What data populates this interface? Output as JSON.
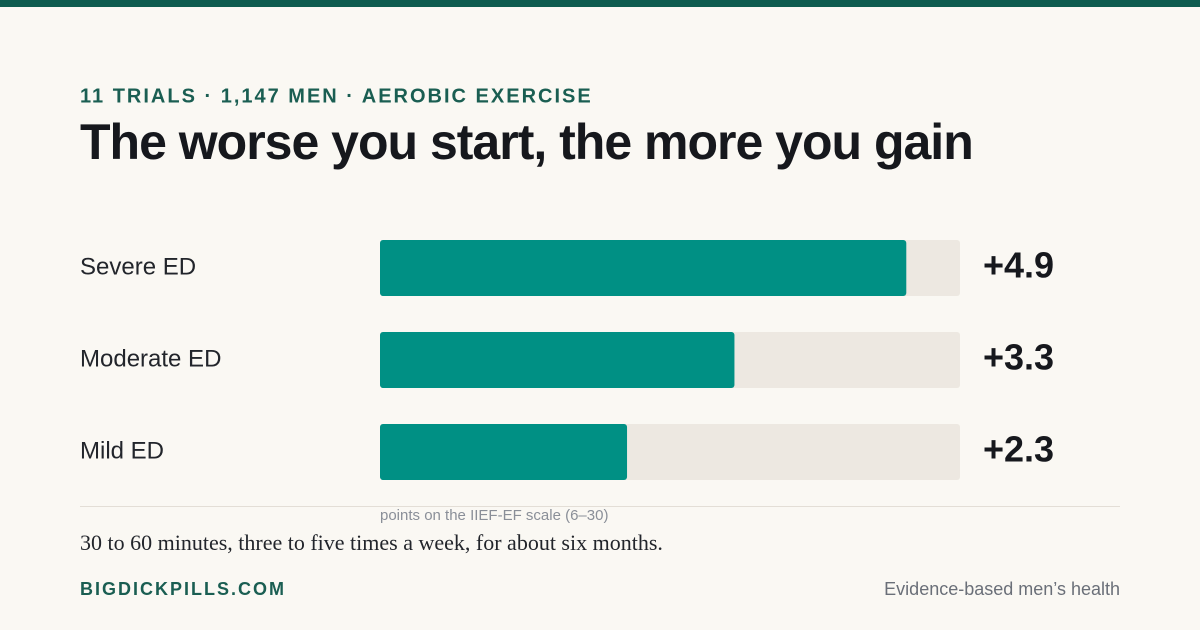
{
  "chart_data": {
    "type": "bar",
    "orientation": "horizontal",
    "kicker": "11 TRIALS · 1,147 MEN · AEROBIC EXERCISE",
    "title": "The worse you start, the more you gain",
    "categories": [
      "Severe ED",
      "Moderate ED",
      "Mild ED"
    ],
    "values": [
      4.9,
      3.3,
      2.3
    ],
    "value_labels": [
      "+4.9",
      "+3.3",
      "+2.3"
    ],
    "color": "#009084",
    "xlim": [
      0,
      5.4
    ],
    "x_label": "points on the IIEF-EF scale (6–30)",
    "note": "30 to 60 minutes, three to five times a week, for about six months.",
    "brand": "BIGDICKPILLS.COM",
    "tagline": "Evidence-based men’s health"
  }
}
